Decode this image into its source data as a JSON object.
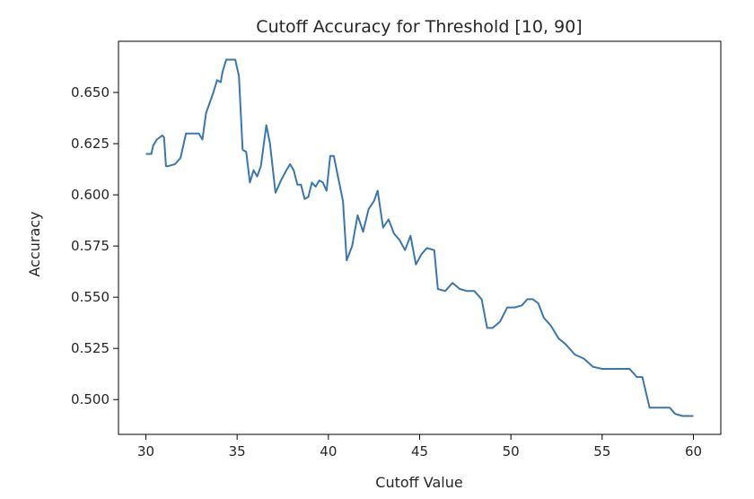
{
  "chart_data": {
    "type": "line",
    "title": "Cutoff Accuracy for Threshold [10, 90]",
    "xlabel": "Cutoff Value",
    "ylabel": "Accuracy",
    "xlim": [
      28.5,
      61.5
    ],
    "ylim": [
      0.483,
      0.675
    ],
    "xticks": [
      30,
      35,
      40,
      45,
      50,
      55,
      60
    ],
    "yticks": [
      0.5,
      0.525,
      0.55,
      0.575,
      0.6,
      0.625,
      0.65
    ],
    "grid": false,
    "line_color": "#3a76b0",
    "series": [
      {
        "x": [
          30.0,
          30.3,
          30.4,
          30.6,
          30.9,
          31.0,
          31.1,
          31.2,
          31.6,
          31.9,
          32.2,
          32.5,
          32.9,
          33.1,
          33.3,
          33.5,
          33.7,
          33.9,
          34.1,
          34.2,
          34.4,
          34.6,
          34.9,
          35.1,
          35.3,
          35.5,
          35.7,
          35.9,
          36.1,
          36.3,
          36.6,
          36.8,
          37.1,
          37.4,
          37.7,
          37.9,
          38.1,
          38.3,
          38.5,
          38.7,
          38.9,
          39.1,
          39.3,
          39.5,
          39.7,
          39.9,
          40.1,
          40.3,
          40.5,
          40.8,
          41.0,
          41.3,
          41.6,
          41.9,
          42.2,
          42.5,
          42.7,
          43.0,
          43.3,
          43.6,
          43.9,
          44.2,
          44.5,
          44.8,
          45.1,
          45.4,
          45.8,
          46.0,
          46.4,
          46.8,
          47.2,
          47.6,
          48.0,
          48.4,
          48.7,
          49.0,
          49.4,
          49.8,
          50.2,
          50.6,
          50.9,
          51.2,
          51.5,
          51.8,
          52.2,
          52.6,
          53.0,
          53.5,
          54.0,
          54.5,
          55.0,
          55.5,
          56.0,
          56.5,
          56.9,
          57.2,
          57.6,
          58.0,
          58.4,
          58.7,
          59.0,
          59.4,
          60.0
        ],
        "y": [
          0.62,
          0.62,
          0.624,
          0.627,
          0.629,
          0.628,
          0.614,
          0.614,
          0.615,
          0.618,
          0.63,
          0.63,
          0.63,
          0.627,
          0.64,
          0.645,
          0.65,
          0.656,
          0.655,
          0.66,
          0.666,
          0.666,
          0.666,
          0.658,
          0.622,
          0.621,
          0.606,
          0.612,
          0.609,
          0.614,
          0.634,
          0.625,
          0.601,
          0.607,
          0.612,
          0.615,
          0.612,
          0.605,
          0.605,
          0.598,
          0.599,
          0.606,
          0.604,
          0.607,
          0.606,
          0.602,
          0.619,
          0.619,
          0.61,
          0.597,
          0.568,
          0.575,
          0.59,
          0.582,
          0.593,
          0.597,
          0.602,
          0.584,
          0.588,
          0.581,
          0.578,
          0.573,
          0.58,
          0.566,
          0.571,
          0.574,
          0.573,
          0.554,
          0.553,
          0.557,
          0.554,
          0.553,
          0.553,
          0.549,
          0.535,
          0.535,
          0.538,
          0.545,
          0.545,
          0.546,
          0.549,
          0.549,
          0.547,
          0.54,
          0.536,
          0.53,
          0.527,
          0.522,
          0.52,
          0.516,
          0.515,
          0.515,
          0.515,
          0.515,
          0.511,
          0.511,
          0.496,
          0.496,
          0.496,
          0.496,
          0.493,
          0.492,
          0.492
        ]
      }
    ]
  }
}
